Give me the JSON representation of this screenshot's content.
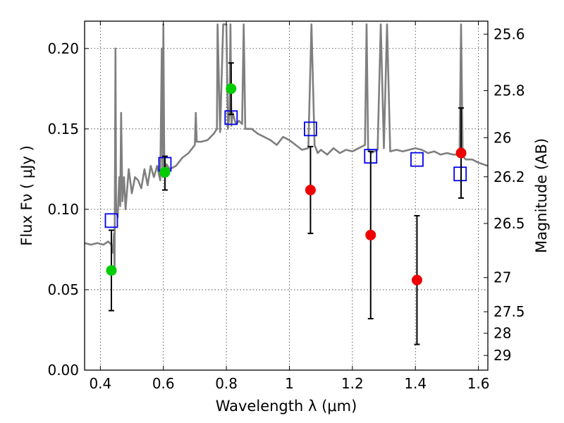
{
  "chart_data": {
    "type": "scatter",
    "title": "",
    "xlabel": "Wavelength  λ (μm)",
    "ylabel": "Flux  Fν  ( μJy )",
    "ylabel_right": "Magnitude (AB)",
    "xlim": [
      0.35,
      1.63
    ],
    "ylim": [
      0.0,
      0.217
    ],
    "grid": true,
    "x_ticks": [
      {
        "value": 0.4,
        "label": "0.4"
      },
      {
        "value": 0.6,
        "label": "0.6"
      },
      {
        "value": 0.8,
        "label": "0.8"
      },
      {
        "value": 1.0,
        "label": "1"
      },
      {
        "value": 1.2,
        "label": "1.2"
      },
      {
        "value": 1.4,
        "label": "1.4"
      },
      {
        "value": 1.6,
        "label": "1.6"
      }
    ],
    "y_ticks": [
      {
        "value": 0.0,
        "label": "0.00"
      },
      {
        "value": 0.05,
        "label": "0.05"
      },
      {
        "value": 0.1,
        "label": "0.10"
      },
      {
        "value": 0.15,
        "label": "0.15"
      },
      {
        "value": 0.2,
        "label": "0.20"
      }
    ],
    "y2_ticks": [
      {
        "value": 25.6,
        "label": "25.6"
      },
      {
        "value": 25.8,
        "label": "25.8"
      },
      {
        "value": 26.0,
        "label": "26"
      },
      {
        "value": 26.2,
        "label": "26.2"
      },
      {
        "value": 26.5,
        "label": "26.5"
      },
      {
        "value": 27.0,
        "label": "27"
      },
      {
        "value": 27.5,
        "label": "27.5"
      },
      {
        "value": 28.0,
        "label": "28"
      },
      {
        "value": 29.0,
        "label": "29"
      }
    ],
    "series": [
      {
        "kind": "line",
        "color": "#7f7f7f",
        "x": [
          0.35,
          0.37,
          0.39,
          0.41,
          0.425,
          0.435,
          0.44,
          0.443,
          0.445,
          0.448,
          0.45,
          0.455,
          0.46,
          0.463,
          0.466,
          0.47,
          0.475,
          0.48,
          0.49,
          0.5,
          0.51,
          0.52,
          0.53,
          0.54,
          0.55,
          0.56,
          0.57,
          0.58,
          0.59,
          0.595,
          0.598,
          0.6,
          0.603,
          0.605,
          0.61,
          0.62,
          0.64,
          0.66,
          0.68,
          0.7,
          0.703,
          0.706,
          0.72,
          0.74,
          0.76,
          0.77,
          0.772,
          0.78,
          0.79,
          0.8,
          0.805,
          0.81,
          0.813,
          0.816,
          0.82,
          0.83,
          0.84,
          0.85,
          0.855,
          0.86,
          0.88,
          0.9,
          0.92,
          0.94,
          0.96,
          0.98,
          1.0,
          1.02,
          1.04,
          1.06,
          1.07,
          1.08,
          1.09,
          1.1,
          1.12,
          1.14,
          1.16,
          1.18,
          1.2,
          1.22,
          1.24,
          1.245,
          1.25,
          1.26,
          1.28,
          1.29,
          1.3,
          1.31,
          1.32,
          1.34,
          1.36,
          1.38,
          1.4,
          1.42,
          1.44,
          1.46,
          1.48,
          1.5,
          1.52,
          1.54,
          1.545,
          1.55,
          1.56,
          1.58,
          1.6,
          1.63
        ],
        "y": [
          0.079,
          0.078,
          0.079,
          0.078,
          0.08,
          0.078,
          0.073,
          0.085,
          0.06,
          0.2,
          0.1,
          0.095,
          0.12,
          0.102,
          0.16,
          0.105,
          0.12,
          0.1,
          0.125,
          0.11,
          0.12,
          0.118,
          0.113,
          0.125,
          0.115,
          0.127,
          0.12,
          0.127,
          0.118,
          0.2,
          0.12,
          0.215,
          0.125,
          0.12,
          0.128,
          0.125,
          0.127,
          0.132,
          0.135,
          0.14,
          0.16,
          0.142,
          0.142,
          0.143,
          0.147,
          0.15,
          0.215,
          0.148,
          0.215,
          0.215,
          0.15,
          0.16,
          0.215,
          0.152,
          0.16,
          0.153,
          0.155,
          0.153,
          0.215,
          0.15,
          0.15,
          0.147,
          0.145,
          0.143,
          0.14,
          0.145,
          0.143,
          0.14,
          0.137,
          0.138,
          0.215,
          0.14,
          0.135,
          0.137,
          0.134,
          0.138,
          0.135,
          0.137,
          0.136,
          0.138,
          0.14,
          0.215,
          0.137,
          0.135,
          0.137,
          0.215,
          0.138,
          0.215,
          0.136,
          0.137,
          0.136,
          0.137,
          0.138,
          0.137,
          0.135,
          0.136,
          0.134,
          0.135,
          0.134,
          0.134,
          0.215,
          0.133,
          0.131,
          0.131,
          0.129,
          0.127
        ]
      },
      {
        "kind": "marker",
        "marker": "square-open",
        "color": "#0000ee",
        "x": [
          0.435,
          0.605,
          0.815,
          1.067,
          1.258,
          1.405,
          1.542
        ],
        "y": [
          0.093,
          0.128,
          0.157,
          0.15,
          0.133,
          0.131,
          0.122
        ]
      },
      {
        "kind": "marker",
        "marker": "circle",
        "color": "#00cc00",
        "x": [
          0.435,
          0.605,
          0.815
        ],
        "y": [
          0.062,
          0.123,
          0.175
        ],
        "yerr_low": [
          0.037,
          0.112,
          0.159
        ],
        "yerr_high": [
          0.087,
          0.133,
          0.191
        ]
      },
      {
        "kind": "marker",
        "marker": "circle",
        "color": "#ee0000",
        "x": [
          1.067,
          1.258,
          1.405,
          1.545
        ],
        "y": [
          0.112,
          0.084,
          0.056,
          0.135
        ],
        "yerr_low": [
          0.085,
          0.032,
          0.016,
          0.107
        ],
        "yerr_high": [
          0.139,
          0.136,
          0.096,
          0.163
        ]
      }
    ]
  }
}
